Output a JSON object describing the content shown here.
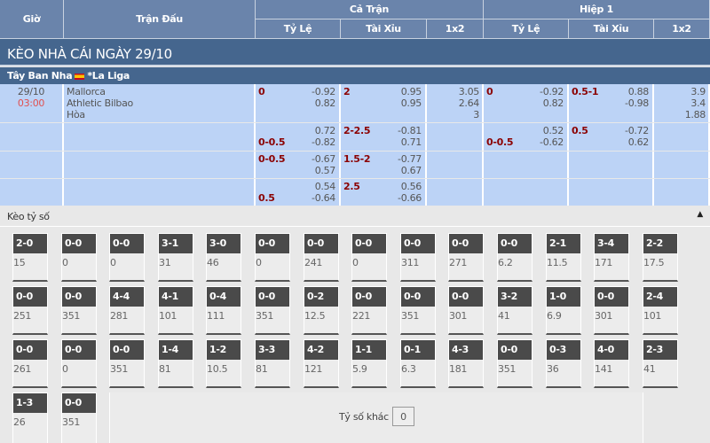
{
  "header": {
    "gio": "Giờ",
    "tran_dau": "Trận Đấu",
    "ca_tran": "Cả Trận",
    "hiep1": "Hiệp 1",
    "ty_le": "Tỷ Lệ",
    "tai_xiu": "Tài Xỉu",
    "x12": "1x2"
  },
  "title": "KÈO NHÀ CÁI NGÀY 29/10",
  "league": {
    "country": "Tây Ban Nha",
    "name": "*La Liga"
  },
  "match": {
    "date": "29/10",
    "time": "03:00",
    "home": "Mallorca",
    "away": "Athletic Bilbao",
    "draw": "Hòa"
  },
  "rows": [
    {
      "ft_hdp": {
        "line": "0",
        "top": "-0.92",
        "bot": "0.82",
        "line_pos": "top"
      },
      "ft_ou": {
        "line": "2",
        "top": "0.95",
        "bot": "0.95",
        "line_pos": "top"
      },
      "ft_1x2": [
        "3.05",
        "2.64",
        "3"
      ],
      "h1_hdp": {
        "line": "0",
        "top": "-0.92",
        "bot": "0.82",
        "line_pos": "top"
      },
      "h1_ou": {
        "line": "0.5-1",
        "top": "0.88",
        "bot": "-0.98",
        "line_pos": "top"
      },
      "h1_1x2": [
        "3.9",
        "3.4",
        "1.88"
      ]
    },
    {
      "ft_hdp": {
        "line": "0-0.5",
        "top": "0.72",
        "bot": "-0.82",
        "line_pos": "bot"
      },
      "ft_ou": {
        "line": "2-2.5",
        "top": "-0.81",
        "bot": "0.71",
        "line_pos": "top"
      },
      "ft_1x2": [],
      "h1_hdp": {
        "line": "0-0.5",
        "top": "0.52",
        "bot": "-0.62",
        "line_pos": "bot"
      },
      "h1_ou": {
        "line": "0.5",
        "top": "-0.72",
        "bot": "0.62",
        "line_pos": "top"
      },
      "h1_1x2": []
    },
    {
      "ft_hdp": {
        "line": "0-0.5",
        "top": "-0.67",
        "bot": "0.57",
        "line_pos": "top"
      },
      "ft_ou": {
        "line": "1.5-2",
        "top": "-0.77",
        "bot": "0.67",
        "line_pos": "top"
      },
      "ft_1x2": [],
      "h1_hdp": null,
      "h1_ou": null,
      "h1_1x2": []
    },
    {
      "ft_hdp": {
        "line": "0.5",
        "top": "0.54",
        "bot": "-0.64",
        "line_pos": "bot"
      },
      "ft_ou": {
        "line": "2.5",
        "top": "0.56",
        "bot": "-0.66",
        "line_pos": "top"
      },
      "ft_1x2": [],
      "h1_hdp": null,
      "h1_ou": null,
      "h1_1x2": []
    }
  ],
  "correct_score": {
    "label": "Kèo tỷ số",
    "other_label": "Tỷ số khác",
    "other_value": "0",
    "rows": [
      [
        [
          "2-0",
          "15"
        ],
        [
          "0-0",
          "0"
        ],
        [
          "0-0",
          "0"
        ],
        [
          "3-1",
          "31"
        ],
        [
          "3-0",
          "46"
        ],
        [
          "0-0",
          "0"
        ],
        [
          "0-0",
          "241"
        ],
        [
          "0-0",
          "0"
        ],
        [
          "0-0",
          "311"
        ],
        [
          "0-0",
          "271"
        ],
        [
          "0-0",
          "6.2"
        ],
        [
          "2-1",
          "11.5"
        ],
        [
          "3-4",
          "171"
        ],
        [
          "2-2",
          "17.5"
        ]
      ],
      [
        [
          "0-0",
          "251"
        ],
        [
          "0-0",
          "351"
        ],
        [
          "4-4",
          "281"
        ],
        [
          "4-1",
          "101"
        ],
        [
          "0-4",
          "111"
        ],
        [
          "0-0",
          "351"
        ],
        [
          "0-2",
          "12.5"
        ],
        [
          "0-0",
          "221"
        ],
        [
          "0-0",
          "351"
        ],
        [
          "0-0",
          "301"
        ],
        [
          "3-2",
          "41"
        ],
        [
          "1-0",
          "6.9"
        ],
        [
          "0-0",
          "301"
        ],
        [
          "2-4",
          "101"
        ]
      ],
      [
        [
          "0-0",
          "261"
        ],
        [
          "0-0",
          "0"
        ],
        [
          "0-0",
          "351"
        ],
        [
          "1-4",
          "81"
        ],
        [
          "1-2",
          "10.5"
        ],
        [
          "3-3",
          "81"
        ],
        [
          "4-2",
          "121"
        ],
        [
          "1-1",
          "5.9"
        ],
        [
          "0-1",
          "6.3"
        ],
        [
          "4-3",
          "181"
        ],
        [
          "0-0",
          "351"
        ],
        [
          "0-3",
          "36"
        ],
        [
          "4-0",
          "141"
        ],
        [
          "2-3",
          "41"
        ]
      ],
      [
        [
          "1-3",
          "26"
        ],
        [
          "0-0",
          "351"
        ]
      ]
    ]
  }
}
